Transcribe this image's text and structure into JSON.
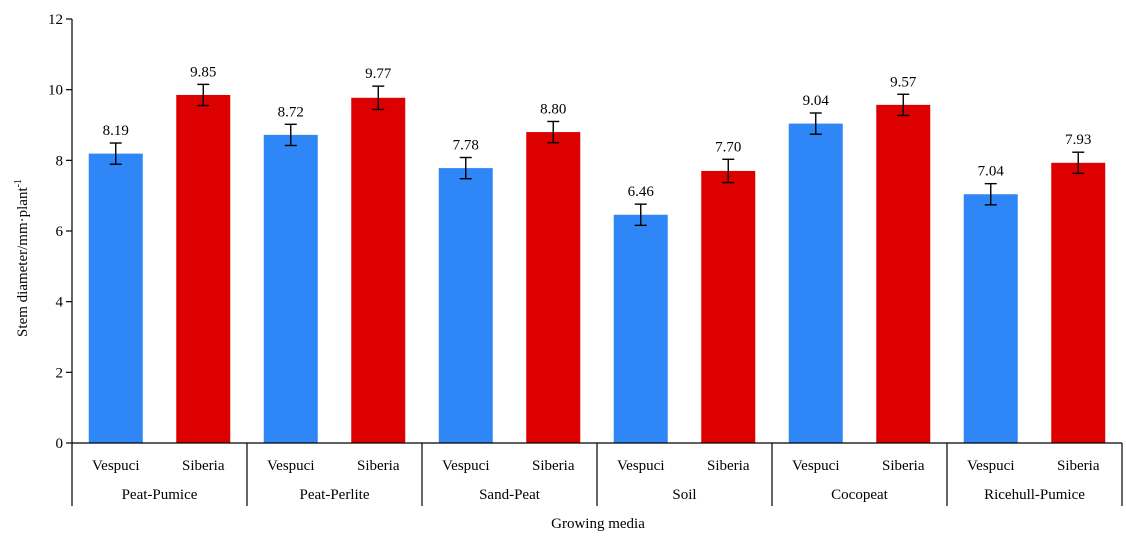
{
  "chart_data": {
    "type": "bar",
    "ylabel_main": "Stem diameter/mm·plant",
    "ylabel_sup": "-1",
    "xlabel": "Growing media",
    "ylim": [
      0,
      12
    ],
    "yticks": [
      "0",
      "2",
      "4",
      "6",
      "8",
      "10",
      "12"
    ],
    "groups": [
      {
        "name": "Peat-Pumice",
        "bars": [
          {
            "variety": "Vespuci",
            "value": 8.19,
            "label": "8.19",
            "error": 0.3
          },
          {
            "variety": "Siberia",
            "value": 9.85,
            "label": "9.85",
            "error": 0.3
          }
        ]
      },
      {
        "name": "Peat-Perlite",
        "bars": [
          {
            "variety": "Vespuci",
            "value": 8.72,
            "label": "8.72",
            "error": 0.3
          },
          {
            "variety": "Siberia",
            "value": 9.77,
            "label": "9.77",
            "error": 0.33
          }
        ]
      },
      {
        "name": "Sand-Peat",
        "bars": [
          {
            "variety": "Vespuci",
            "value": 7.78,
            "label": "7.78",
            "error": 0.3
          },
          {
            "variety": "Siberia",
            "value": 8.8,
            "label": "8.80",
            "error": 0.3
          }
        ]
      },
      {
        "name": "Soil",
        "bars": [
          {
            "variety": "Vespuci",
            "value": 6.46,
            "label": "6.46",
            "error": 0.3
          },
          {
            "variety": "Siberia",
            "value": 7.7,
            "label": "7.70",
            "error": 0.33
          }
        ]
      },
      {
        "name": "Cocopeat",
        "bars": [
          {
            "variety": "Vespuci",
            "value": 9.04,
            "label": "9.04",
            "error": 0.3
          },
          {
            "variety": "Siberia",
            "value": 9.57,
            "label": "9.57",
            "error": 0.3
          }
        ]
      },
      {
        "name": "Ricehull-Pumice",
        "bars": [
          {
            "variety": "Vespuci",
            "value": 7.04,
            "label": "7.04",
            "error": 0.3
          },
          {
            "variety": "Siberia",
            "value": 7.93,
            "label": "7.93",
            "error": 0.3
          }
        ]
      }
    ],
    "colors": {
      "Vespuci": "#2f86f6",
      "Siberia": "#dd0000"
    },
    "grid": false
  }
}
